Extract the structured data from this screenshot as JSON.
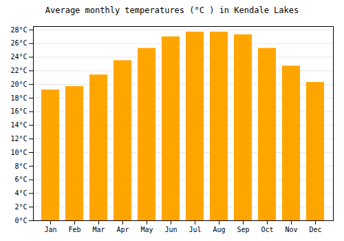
{
  "chart_data": {
    "type": "bar",
    "title": "Average monthly temperatures (°C ) in Kendale Lakes",
    "categories": [
      "Jan",
      "Feb",
      "Mar",
      "Apr",
      "May",
      "Jun",
      "Jul",
      "Aug",
      "Sep",
      "Oct",
      "Nov",
      "Dec"
    ],
    "values": [
      19.2,
      19.7,
      21.4,
      23.5,
      25.3,
      27.0,
      27.7,
      27.7,
      27.3,
      25.3,
      22.7,
      20.3
    ],
    "color": "#FFA500",
    "ylim": [
      0,
      28.5
    ],
    "yticks": [
      {
        "value": 0,
        "label": "0°C"
      },
      {
        "value": 2,
        "label": "2°C"
      },
      {
        "value": 4,
        "label": "4°C"
      },
      {
        "value": 6,
        "label": "6°C"
      },
      {
        "value": 8,
        "label": "8°C"
      },
      {
        "value": 10,
        "label": "10°C"
      },
      {
        "value": 12,
        "label": "12°C"
      },
      {
        "value": 14,
        "label": "14°C"
      },
      {
        "value": 16,
        "label": "16°C"
      },
      {
        "value": 18,
        "label": "18°C"
      },
      {
        "value": 20,
        "label": "20°C"
      },
      {
        "value": 22,
        "label": "22°C"
      },
      {
        "value": 24,
        "label": "24°C"
      },
      {
        "value": 26,
        "label": "26°C"
      },
      {
        "value": 28,
        "label": "28°C"
      }
    ],
    "grid": true
  }
}
